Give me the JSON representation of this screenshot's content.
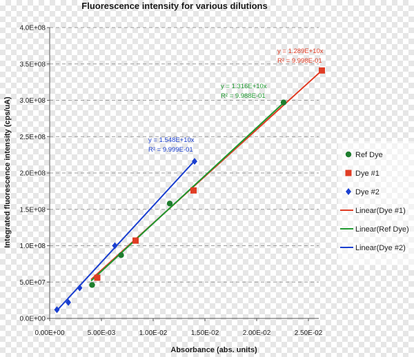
{
  "chart_data": {
    "type": "scatter",
    "title": "Fluorescence intensity for various dilutions",
    "xlabel": "Absorbance (abs. units)",
    "ylabel": "Integrated fluorescence intensity  (cps/uA)",
    "xlim": [
      0,
      0.026
    ],
    "ylim": [
      0,
      400000000
    ],
    "x_ticks": [
      {
        "value": 0,
        "label": "0.00E+00"
      },
      {
        "value": 0.005,
        "label": "5.00E-03"
      },
      {
        "value": 0.01,
        "label": "1.00E-02"
      },
      {
        "value": 0.015,
        "label": "1.50E-02"
      },
      {
        "value": 0.02,
        "label": "2.00E-02"
      },
      {
        "value": 0.025,
        "label": "2.50E-02"
      }
    ],
    "y_ticks": [
      {
        "value": 0,
        "label": "0.0E+00"
      },
      {
        "value": 50000000,
        "label": "5.0E+07"
      },
      {
        "value": 100000000,
        "label": "1.0E+08"
      },
      {
        "value": 150000000,
        "label": "1.5E+08"
      },
      {
        "value": 200000000,
        "label": "2.0E+08"
      },
      {
        "value": 250000000,
        "label": "2.5E+08"
      },
      {
        "value": 300000000,
        "label": "3.0E+08"
      },
      {
        "value": 350000000,
        "label": "3.5E+08"
      },
      {
        "value": 400000000,
        "label": "4.0E+08"
      }
    ],
    "grid": "horizontal-dashed",
    "legend_position": "right",
    "series": [
      {
        "name": "Ref Dye",
        "marker": "circle",
        "color": "#1e7d2e",
        "points": [
          [
            0.0041,
            46000000
          ],
          [
            0.0069,
            87000000
          ],
          [
            0.0116,
            158000000
          ],
          [
            0.0226,
            297000000
          ]
        ]
      },
      {
        "name": "Dye #1",
        "marker": "square",
        "color": "#e03c24",
        "points": [
          [
            0.0046,
            56000000
          ],
          [
            0.0083,
            107000000
          ],
          [
            0.0139,
            176000000
          ],
          [
            0.0263,
            341000000
          ]
        ]
      },
      {
        "name": "Dye #2",
        "marker": "diamond",
        "color": "#1a3fd0",
        "points": [
          [
            0.0007,
            12000000
          ],
          [
            0.0018,
            22000000
          ],
          [
            0.0029,
            42000000
          ],
          [
            0.0063,
            100000000
          ],
          [
            0.014,
            216000000
          ]
        ]
      }
    ],
    "trendlines": [
      {
        "legend": "Linear(Dye #1)",
        "color": "#e03c24",
        "x_range": [
          0.004,
          0.0263
        ],
        "slope": 12890000000,
        "intercept": 2000000,
        "eq": "y = 1.289E+10x",
        "r2": "R² = 9.998E-01"
      },
      {
        "legend": "Linear(Ref Dye)",
        "color": "#1e9a30",
        "x_range": [
          0.004,
          0.0226
        ],
        "slope": 13160000000,
        "intercept": -1000000,
        "eq": "y = 1.316E+10x",
        "r2": "R² = 9.988E-01"
      },
      {
        "legend": "Linear(Dye #2)",
        "color": "#1a3fd0",
        "x_range": [
          0.0007,
          0.014
        ],
        "slope": 15480000000,
        "intercept": 0,
        "eq": "y = 1.548E+10x",
        "r2": "R² = 9.999E-01"
      }
    ]
  }
}
